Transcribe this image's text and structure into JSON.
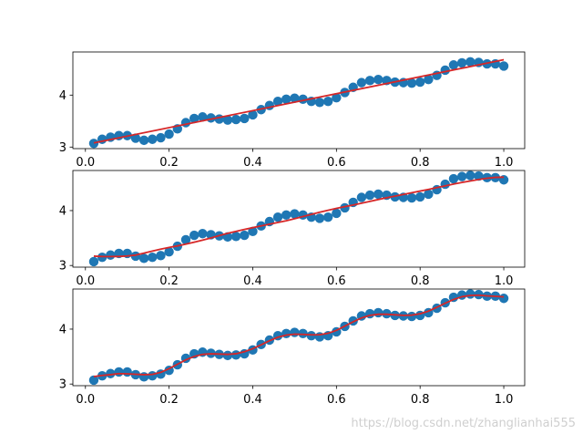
{
  "watermark": "https://blog.csdn.net/zhanglianhai555",
  "colors": {
    "scatter": "#1f77b4",
    "fit": "#d62728",
    "axis": "#000000"
  },
  "chart_data": [
    {
      "type": "scatter",
      "xlim": [
        -0.03,
        1.05
      ],
      "ylim": [
        2.97,
        4.83
      ],
      "xticks": [
        0.0,
        0.2,
        0.4,
        0.6,
        0.8,
        1.0
      ],
      "xtick_labels": [
        "0.0",
        "0.2",
        "0.4",
        "0.6",
        "0.8",
        "1.0"
      ],
      "yticks": [
        3,
        4
      ],
      "ytick_labels": [
        "3",
        "4"
      ],
      "scatter": {
        "x": [
          0.02,
          0.04,
          0.06,
          0.08,
          0.1,
          0.12,
          0.14,
          0.16,
          0.18,
          0.2,
          0.22,
          0.24,
          0.26,
          0.28,
          0.3,
          0.32,
          0.34,
          0.36,
          0.38,
          0.4,
          0.42,
          0.44,
          0.46,
          0.48,
          0.5,
          0.52,
          0.54,
          0.56,
          0.58,
          0.6,
          0.62,
          0.64,
          0.66,
          0.68,
          0.7,
          0.72,
          0.74,
          0.76,
          0.78,
          0.8,
          0.82,
          0.84,
          0.86,
          0.88,
          0.9,
          0.92,
          0.94,
          0.96,
          0.98,
          1.0
        ],
        "y": [
          3.07,
          3.15,
          3.19,
          3.22,
          3.22,
          3.17,
          3.13,
          3.15,
          3.18,
          3.25,
          3.35,
          3.47,
          3.55,
          3.58,
          3.56,
          3.54,
          3.52,
          3.53,
          3.55,
          3.62,
          3.72,
          3.8,
          3.88,
          3.92,
          3.94,
          3.92,
          3.88,
          3.86,
          3.88,
          3.95,
          4.05,
          4.15,
          4.24,
          4.28,
          4.3,
          4.28,
          4.25,
          4.24,
          4.23,
          4.25,
          4.3,
          4.38,
          4.48,
          4.58,
          4.62,
          4.64,
          4.63,
          4.6,
          4.6,
          4.56
        ]
      },
      "fit": {
        "kind": "linear",
        "x": [
          0.02,
          1.0
        ],
        "y": [
          3.08,
          4.68
        ]
      }
    },
    {
      "type": "scatter",
      "xlim": [
        -0.03,
        1.05
      ],
      "ylim": [
        2.97,
        4.73
      ],
      "xticks": [
        0.0,
        0.2,
        0.4,
        0.6,
        0.8,
        1.0
      ],
      "xtick_labels": [
        "0.0",
        "0.2",
        "0.4",
        "0.6",
        "0.8",
        "1.0"
      ],
      "yticks": [
        3,
        4
      ],
      "ytick_labels": [
        "3",
        "4"
      ],
      "scatter": {
        "x": [
          0.02,
          0.04,
          0.06,
          0.08,
          0.1,
          0.12,
          0.14,
          0.16,
          0.18,
          0.2,
          0.22,
          0.24,
          0.26,
          0.28,
          0.3,
          0.32,
          0.34,
          0.36,
          0.38,
          0.4,
          0.42,
          0.44,
          0.46,
          0.48,
          0.5,
          0.52,
          0.54,
          0.56,
          0.58,
          0.6,
          0.62,
          0.64,
          0.66,
          0.68,
          0.7,
          0.72,
          0.74,
          0.76,
          0.78,
          0.8,
          0.82,
          0.84,
          0.86,
          0.88,
          0.9,
          0.92,
          0.94,
          0.96,
          0.98,
          1.0
        ],
        "y": [
          3.07,
          3.15,
          3.19,
          3.22,
          3.22,
          3.17,
          3.13,
          3.15,
          3.18,
          3.25,
          3.35,
          3.47,
          3.55,
          3.58,
          3.56,
          3.54,
          3.52,
          3.53,
          3.55,
          3.62,
          3.72,
          3.8,
          3.88,
          3.92,
          3.94,
          3.92,
          3.88,
          3.86,
          3.88,
          3.95,
          4.05,
          4.15,
          4.24,
          4.28,
          4.3,
          4.28,
          4.25,
          4.24,
          4.23,
          4.25,
          4.3,
          4.38,
          4.48,
          4.58,
          4.62,
          4.64,
          4.63,
          4.6,
          4.6,
          4.56
        ]
      },
      "fit": {
        "kind": "smooth",
        "window": 5
      }
    },
    {
      "type": "scatter",
      "xlim": [
        -0.03,
        1.05
      ],
      "ylim": [
        2.97,
        4.73
      ],
      "xticks": [
        0.0,
        0.2,
        0.4,
        0.6,
        0.8,
        1.0
      ],
      "xtick_labels": [
        "0.0",
        "0.2",
        "0.4",
        "0.6",
        "0.8",
        "1.0"
      ],
      "yticks": [
        3,
        4
      ],
      "ytick_labels": [
        "3",
        "4"
      ],
      "scatter": {
        "x": [
          0.02,
          0.04,
          0.06,
          0.08,
          0.1,
          0.12,
          0.14,
          0.16,
          0.18,
          0.2,
          0.22,
          0.24,
          0.26,
          0.28,
          0.3,
          0.32,
          0.34,
          0.36,
          0.38,
          0.4,
          0.42,
          0.44,
          0.46,
          0.48,
          0.5,
          0.52,
          0.54,
          0.56,
          0.58,
          0.6,
          0.62,
          0.64,
          0.66,
          0.68,
          0.7,
          0.72,
          0.74,
          0.76,
          0.78,
          0.8,
          0.82,
          0.84,
          0.86,
          0.88,
          0.9,
          0.92,
          0.94,
          0.96,
          0.98,
          1.0
        ],
        "y": [
          3.07,
          3.15,
          3.19,
          3.22,
          3.22,
          3.17,
          3.13,
          3.15,
          3.18,
          3.25,
          3.35,
          3.47,
          3.55,
          3.58,
          3.56,
          3.54,
          3.52,
          3.53,
          3.55,
          3.62,
          3.72,
          3.8,
          3.88,
          3.92,
          3.94,
          3.92,
          3.88,
          3.86,
          3.88,
          3.95,
          4.05,
          4.15,
          4.24,
          4.28,
          4.3,
          4.28,
          4.25,
          4.24,
          4.23,
          4.25,
          4.3,
          4.38,
          4.48,
          4.58,
          4.62,
          4.64,
          4.63,
          4.6,
          4.6,
          4.56
        ]
      },
      "fit": {
        "kind": "smooth",
        "window": 2
      }
    }
  ]
}
